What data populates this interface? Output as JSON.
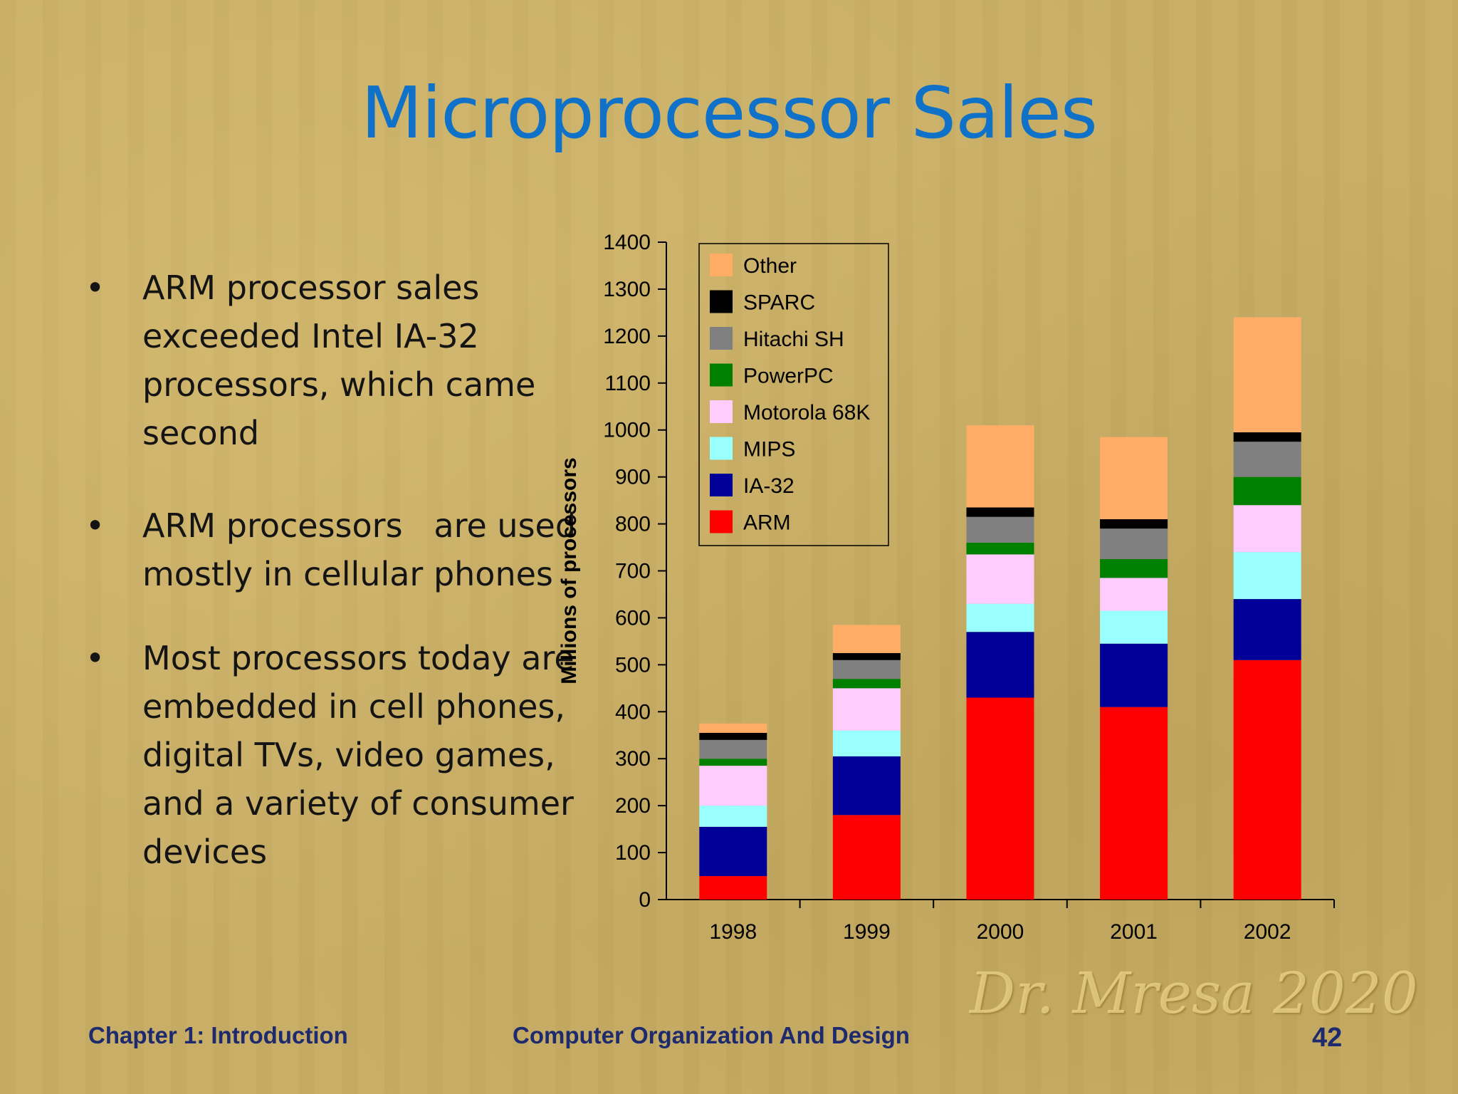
{
  "slide": {
    "title": "Microprocessor Sales",
    "bullets": [
      "ARM processor sales exceeded Intel IA-32 processors, which came second",
      "ARM processors   are used mostly in cellular phones",
      "Most processors today are embedded in cell phones, digital TVs, video games, and a variety of consumer devices"
    ],
    "bullet_marker": "•"
  },
  "footer": {
    "left": "Chapter 1: Introduction",
    "center": "Computer Organization And Design",
    "page": "42",
    "watermark": "Dr. Mresa 2020"
  },
  "chart_data": {
    "type": "bar",
    "stacked": true,
    "title": "",
    "xlabel": "",
    "ylabel": "Millions of processors",
    "ylim": [
      0,
      1400
    ],
    "yticks": [
      0,
      100,
      200,
      300,
      400,
      500,
      600,
      700,
      800,
      900,
      1000,
      1100,
      1200,
      1300,
      1400
    ],
    "categories": [
      "1998",
      "1999",
      "2000",
      "2001",
      "2002"
    ],
    "legend_position": "top-left",
    "series": [
      {
        "name": "ARM",
        "color": "#ff0000",
        "values": [
          50,
          180,
          430,
          410,
          510
        ]
      },
      {
        "name": "IA-32",
        "color": "#000099",
        "values": [
          105,
          125,
          140,
          135,
          130
        ]
      },
      {
        "name": "MIPS",
        "color": "#99ffff",
        "values": [
          45,
          55,
          60,
          70,
          100
        ]
      },
      {
        "name": "Motorola 68K",
        "color": "#ffccff",
        "values": [
          85,
          90,
          105,
          70,
          100
        ]
      },
      {
        "name": "PowerPC",
        "color": "#008000",
        "values": [
          15,
          20,
          25,
          40,
          60
        ]
      },
      {
        "name": "Hitachi SH",
        "color": "#808080",
        "values": [
          40,
          40,
          55,
          65,
          75
        ]
      },
      {
        "name": "SPARC",
        "color": "#000000",
        "values": [
          15,
          15,
          20,
          20,
          20
        ]
      },
      {
        "name": "Other",
        "color": "#ffad66",
        "values": [
          20,
          60,
          175,
          175,
          245
        ]
      }
    ]
  }
}
